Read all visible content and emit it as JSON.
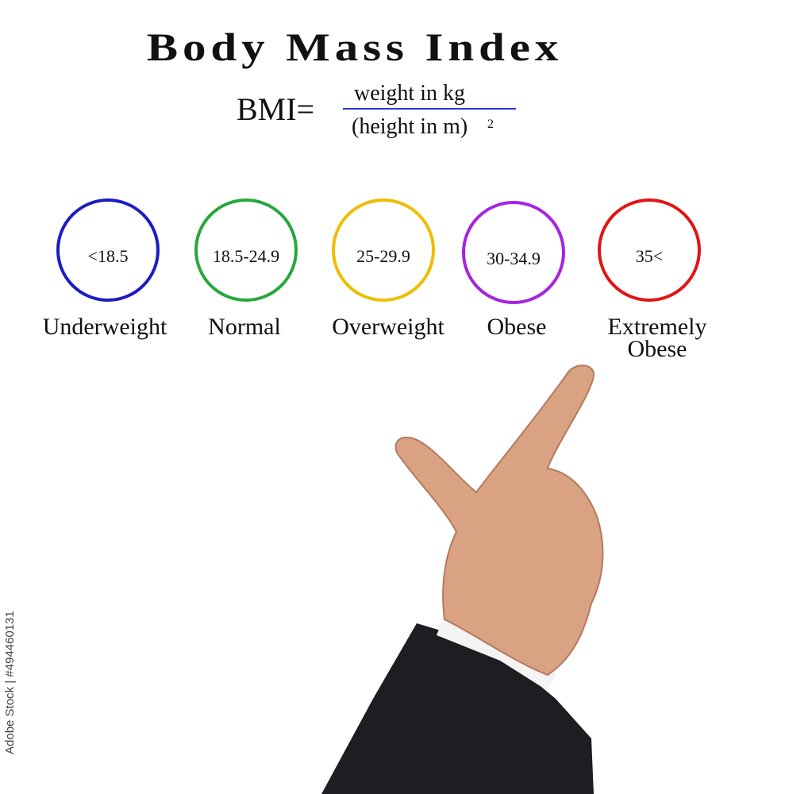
{
  "header": {
    "title": "Body Mass Index"
  },
  "formula": {
    "lhs": "BMI=",
    "numerator": "weight in kg",
    "denominator": "(height in m)",
    "exponent": "2"
  },
  "categories": [
    {
      "range": "<18.5",
      "label": "Underweight",
      "color": "#1c1cc4"
    },
    {
      "range": "18.5-24.9",
      "label": "Normal",
      "color": "#26a83c"
    },
    {
      "range": "25-29.9",
      "label": "Overweight",
      "color": "#eebd00"
    },
    {
      "range": "30-34.9",
      "label": "Obese",
      "color": "#a424e0"
    },
    {
      "range": "35<",
      "label": "Extremely Obese",
      "color": "#e21414"
    }
  ],
  "watermark": "Adobe Stock | #494460131"
}
